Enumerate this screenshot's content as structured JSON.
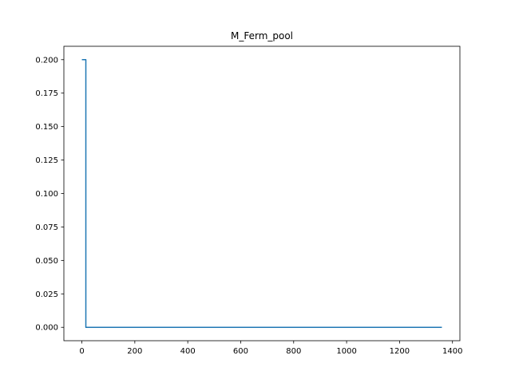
{
  "chart_data": {
    "type": "line",
    "title": "M_Ferm_pool",
    "xlabel": "",
    "ylabel": "",
    "xlim": [
      -68,
      1428
    ],
    "ylim": [
      -0.01,
      0.21
    ],
    "xticks": [
      0,
      200,
      400,
      600,
      800,
      1000,
      1200,
      1400
    ],
    "xtick_labels": [
      "0",
      "200",
      "400",
      "600",
      "800",
      "1000",
      "1200",
      "1400"
    ],
    "yticks": [
      0.0,
      0.025,
      0.05,
      0.075,
      0.1,
      0.125,
      0.15,
      0.175,
      0.2
    ],
    "ytick_labels": [
      "0.000",
      "0.025",
      "0.050",
      "0.075",
      "0.100",
      "0.125",
      "0.150",
      "0.175",
      "0.200"
    ],
    "grid": false,
    "series": [
      {
        "color": "#1f77b4",
        "x": [
          0,
          15,
          15,
          1360
        ],
        "y": [
          0.2,
          0.2,
          0.0,
          0.0
        ]
      }
    ]
  }
}
